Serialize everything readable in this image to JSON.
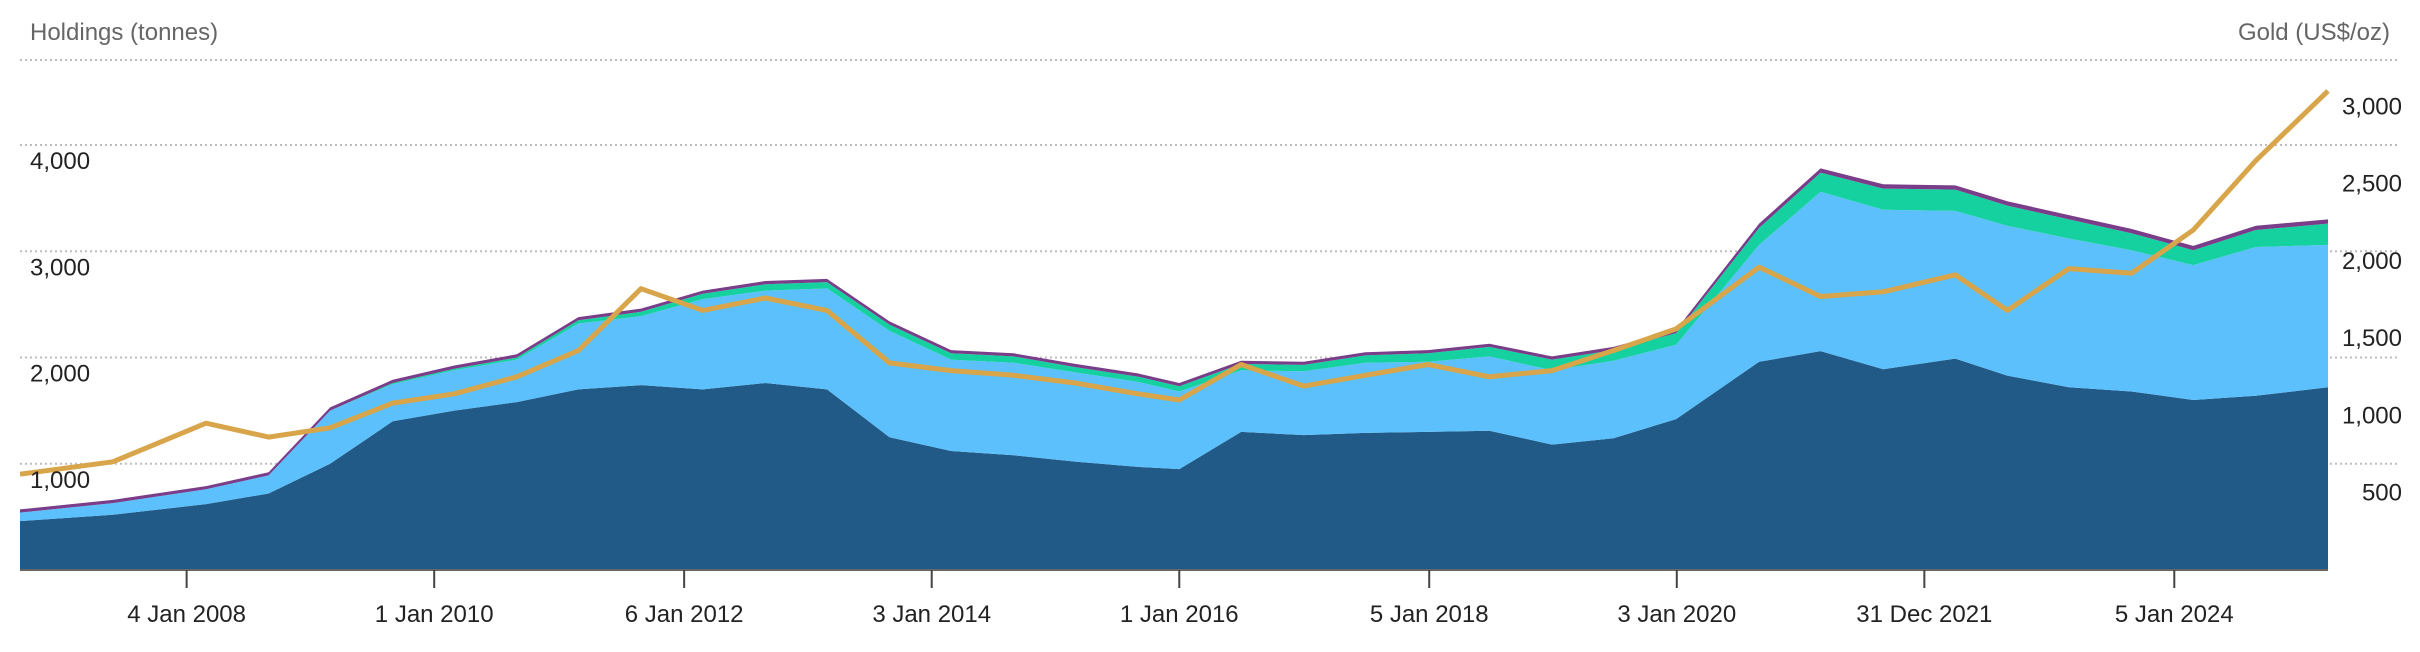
{
  "chart_data": {
    "type": "area",
    "left_axis_title": "Holdings (tonnes)",
    "right_axis_title": "Gold (US$/oz)",
    "x_range": [
      "2006-09-01",
      "2025-04-01"
    ],
    "x_tick_labels": [
      {
        "date": "2008-01-04",
        "label": "4 Jan 2008"
      },
      {
        "date": "2010-01-01",
        "label": "1 Jan 2010"
      },
      {
        "date": "2012-01-06",
        "label": "6 Jan 2012"
      },
      {
        "date": "2014-01-03",
        "label": "3 Jan 2014"
      },
      {
        "date": "2016-01-01",
        "label": "1 Jan 2016"
      },
      {
        "date": "2018-01-05",
        "label": "5 Jan 2018"
      },
      {
        "date": "2020-01-03",
        "label": "3 Jan 2020"
      },
      {
        "date": "2021-12-31",
        "label": "31 Dec 2021"
      },
      {
        "date": "2024-01-05",
        "label": "5 Jan 2024"
      }
    ],
    "left_axis": {
      "range": [
        0,
        4800
      ],
      "ticks": [
        1000,
        2000,
        3000,
        4000
      ],
      "tick_labels": [
        "1,000",
        "2,000",
        "3,000",
        "4,000"
      ]
    },
    "right_axis": {
      "range": [
        0,
        3300
      ],
      "ticks": [
        500,
        1000,
        1500,
        2000,
        2500,
        3000
      ],
      "tick_labels": [
        "500",
        "1,000",
        "1,500",
        "2,000",
        "2,500",
        "3,000"
      ]
    },
    "x": [
      "2006-09",
      "2007-06",
      "2008-03",
      "2008-09",
      "2009-03",
      "2009-09",
      "2010-03",
      "2010-09",
      "2011-03",
      "2011-09",
      "2012-03",
      "2012-09",
      "2013-03",
      "2013-09",
      "2014-03",
      "2014-09",
      "2015-03",
      "2015-09",
      "2016-01",
      "2016-07",
      "2017-01",
      "2017-07",
      "2018-01",
      "2018-07",
      "2019-01",
      "2019-07",
      "2020-01",
      "2020-09",
      "2021-03",
      "2021-09",
      "2022-04",
      "2022-09",
      "2023-03",
      "2023-09",
      "2024-03",
      "2024-09",
      "2025-04"
    ],
    "series": [
      {
        "color": "#215a87",
        "values": [
          460,
          520,
          620,
          720,
          1000,
          1400,
          1500,
          1580,
          1700,
          1740,
          1700,
          1760,
          1700,
          1250,
          1120,
          1080,
          1020,
          970,
          950,
          1300,
          1270,
          1290,
          1300,
          1310,
          1180,
          1240,
          1420,
          1960,
          2060,
          1890,
          1990,
          1830,
          1720,
          1680,
          1600,
          1640,
          1720
        ]
      },
      {
        "color": "#5bc0fb",
        "values": [
          80,
          110,
          140,
          170,
          500,
          350,
          380,
          400,
          620,
          650,
          850,
          870,
          950,
          1000,
          860,
          870,
          840,
          800,
          730,
          580,
          600,
          660,
          660,
          700,
          700,
          730,
          700,
          1100,
          1500,
          1500,
          1390,
          1410,
          1400,
          1330,
          1270,
          1400,
          1340
        ]
      },
      {
        "color": "#14d19f",
        "values": [
          0,
          0,
          0,
          0,
          0,
          10,
          15,
          20,
          30,
          40,
          50,
          60,
          60,
          60,
          60,
          60,
          50,
          50,
          50,
          60,
          60,
          70,
          80,
          90,
          100,
          100,
          110,
          160,
          180,
          200,
          200,
          190,
          180,
          160,
          140,
          160,
          200
        ]
      },
      {
        "color": "#7a3d8a",
        "values": [
          30,
          30,
          30,
          30,
          30,
          30,
          30,
          30,
          30,
          30,
          30,
          30,
          30,
          30,
          30,
          30,
          30,
          30,
          30,
          30,
          30,
          30,
          30,
          30,
          30,
          30,
          30,
          40,
          40,
          40,
          40,
          40,
          40,
          40,
          40,
          40,
          40
        ]
      }
    ],
    "gold_price": {
      "color": "#d8a54a",
      "values": [
        620,
        700,
        950,
        860,
        920,
        1080,
        1140,
        1250,
        1420,
        1820,
        1680,
        1760,
        1680,
        1340,
        1290,
        1260,
        1210,
        1140,
        1100,
        1330,
        1190,
        1260,
        1330,
        1250,
        1290,
        1420,
        1560,
        1960,
        1770,
        1800,
        1910,
        1680,
        1950,
        1920,
        2200,
        2650,
        3100
      ]
    }
  }
}
